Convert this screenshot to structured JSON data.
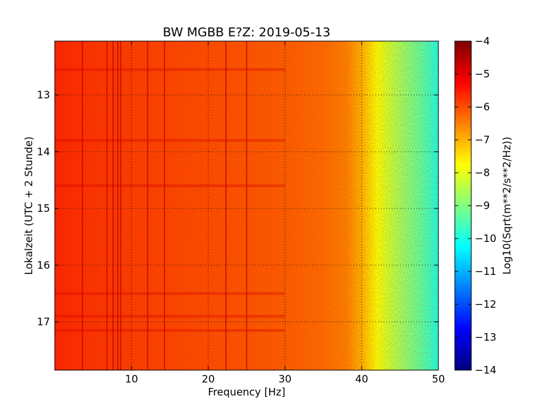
{
  "chart_data": {
    "type": "heatmap",
    "title": "BW MGBB E?Z: 2019-05-13",
    "xlabel": "Frequency [Hz]",
    "ylabel": "Lokalzeit (UTC + 2 Stunde)",
    "xlim": [
      0,
      50
    ],
    "ylim": [
      12.05,
      17.85
    ],
    "y_inverted": true,
    "grid": true,
    "x_ticks": [
      {
        "value": 10,
        "label": "10"
      },
      {
        "value": 20,
        "label": "20"
      },
      {
        "value": 30,
        "label": "30"
      },
      {
        "value": 40,
        "label": "40"
      },
      {
        "value": 50,
        "label": "50"
      }
    ],
    "y_ticks": [
      {
        "value": 13,
        "label": "13"
      },
      {
        "value": 14,
        "label": "14"
      },
      {
        "value": 15,
        "label": "15"
      },
      {
        "value": 16,
        "label": "16"
      },
      {
        "value": 17,
        "label": "17"
      }
    ],
    "colorbar": {
      "label": "Log10(Sqrt(m**2/s**2/Hz))",
      "range": [
        -14,
        -4
      ],
      "colormap": "jet",
      "ticks": [
        {
          "value": -4,
          "label": "−4"
        },
        {
          "value": -5,
          "label": "−5"
        },
        {
          "value": -6,
          "label": "−6"
        },
        {
          "value": -7,
          "label": "−7"
        },
        {
          "value": -8,
          "label": "−8"
        },
        {
          "value": -9,
          "label": "−9"
        },
        {
          "value": -10,
          "label": "−10"
        },
        {
          "value": -11,
          "label": "−11"
        },
        {
          "value": -12,
          "label": "−12"
        },
        {
          "value": -13,
          "label": "−13"
        },
        {
          "value": -14,
          "label": "−14"
        }
      ]
    },
    "spectrum_profile": {
      "frequency": [
        0,
        5,
        10,
        20,
        30,
        35,
        38,
        40,
        42,
        44,
        46,
        48,
        50
      ],
      "value": [
        -5.6,
        -5.75,
        -5.85,
        -6.0,
        -6.15,
        -6.3,
        -6.5,
        -7.0,
        -7.8,
        -8.4,
        -8.9,
        -9.4,
        -10.0
      ]
    },
    "vertical_lines_hz": [
      3.6,
      6.8,
      7.6,
      8.2,
      8.6,
      12.1,
      14.3,
      22.3,
      25.0
    ],
    "horizontal_bands_h": [
      12.55,
      13.8,
      14.6,
      16.5,
      16.9,
      17.15
    ]
  }
}
